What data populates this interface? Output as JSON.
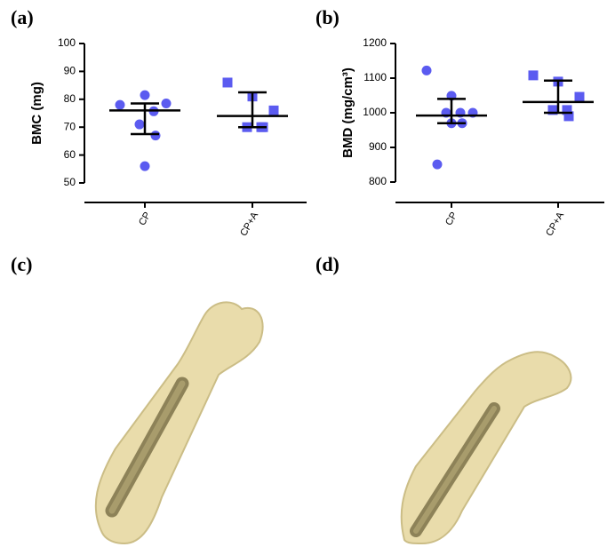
{
  "panel_labels": [
    "(a)",
    "(b)",
    "(c)",
    "(d)"
  ],
  "chart_data": [
    {
      "type": "dot",
      "y_label": "BMC (mg)",
      "categories": [
        "CP",
        "CP+A"
      ],
      "markers": [
        "circle",
        "square"
      ],
      "color": "#5b5bf0",
      "points": [
        [
          78,
          81.5,
          78.5,
          75.7,
          71,
          67,
          56
        ],
        [
          86,
          81,
          76,
          70,
          70,
          70
        ]
      ],
      "center": [
        76,
        74
      ],
      "lower": [
        67.5,
        70
      ],
      "upper": [
        78.5,
        82.5
      ],
      "ylim": [
        50,
        100
      ],
      "yticks": [
        50,
        60,
        70,
        80,
        90,
        100
      ]
    },
    {
      "type": "dot",
      "y_label": "BMD (mg/cm³)",
      "categories": [
        "CP",
        "CP+A"
      ],
      "markers": [
        "circle",
        "square"
      ],
      "color": "#5b5bf0",
      "points": [
        [
          1122,
          1049,
          1000,
          1000,
          1000,
          970,
          970,
          851
        ],
        [
          1108,
          1090,
          1046,
          1008,
          1008,
          990
        ]
      ],
      "center": [
        992,
        1031
      ],
      "lower": [
        970,
        1000
      ],
      "upper": [
        1040,
        1093
      ],
      "ylim": [
        800,
        1200
      ],
      "yticks": [
        800,
        900,
        1000,
        1100,
        1200
      ]
    }
  ]
}
